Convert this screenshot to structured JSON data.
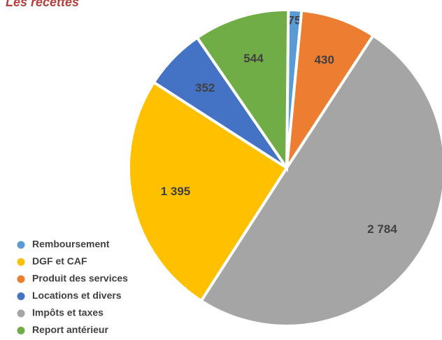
{
  "chart_data": {
    "type": "pie",
    "title": "Les recettes",
    "categories": [
      "Remboursement",
      "Produit des services",
      "Impôts et taxes",
      "DGF et CAF",
      "Locations et divers",
      "Report antérieur"
    ],
    "values": [
      75,
      430,
      2784,
      1395,
      352,
      544
    ],
    "value_labels": [
      "75",
      "430",
      "2 784",
      "1 395",
      "352",
      "544"
    ],
    "colors": [
      "#5b9bd5",
      "#ed7d31",
      "#a5a5a5",
      "#ffc000",
      "#4472c4",
      "#70ad47"
    ],
    "legend": "bottom-left"
  }
}
